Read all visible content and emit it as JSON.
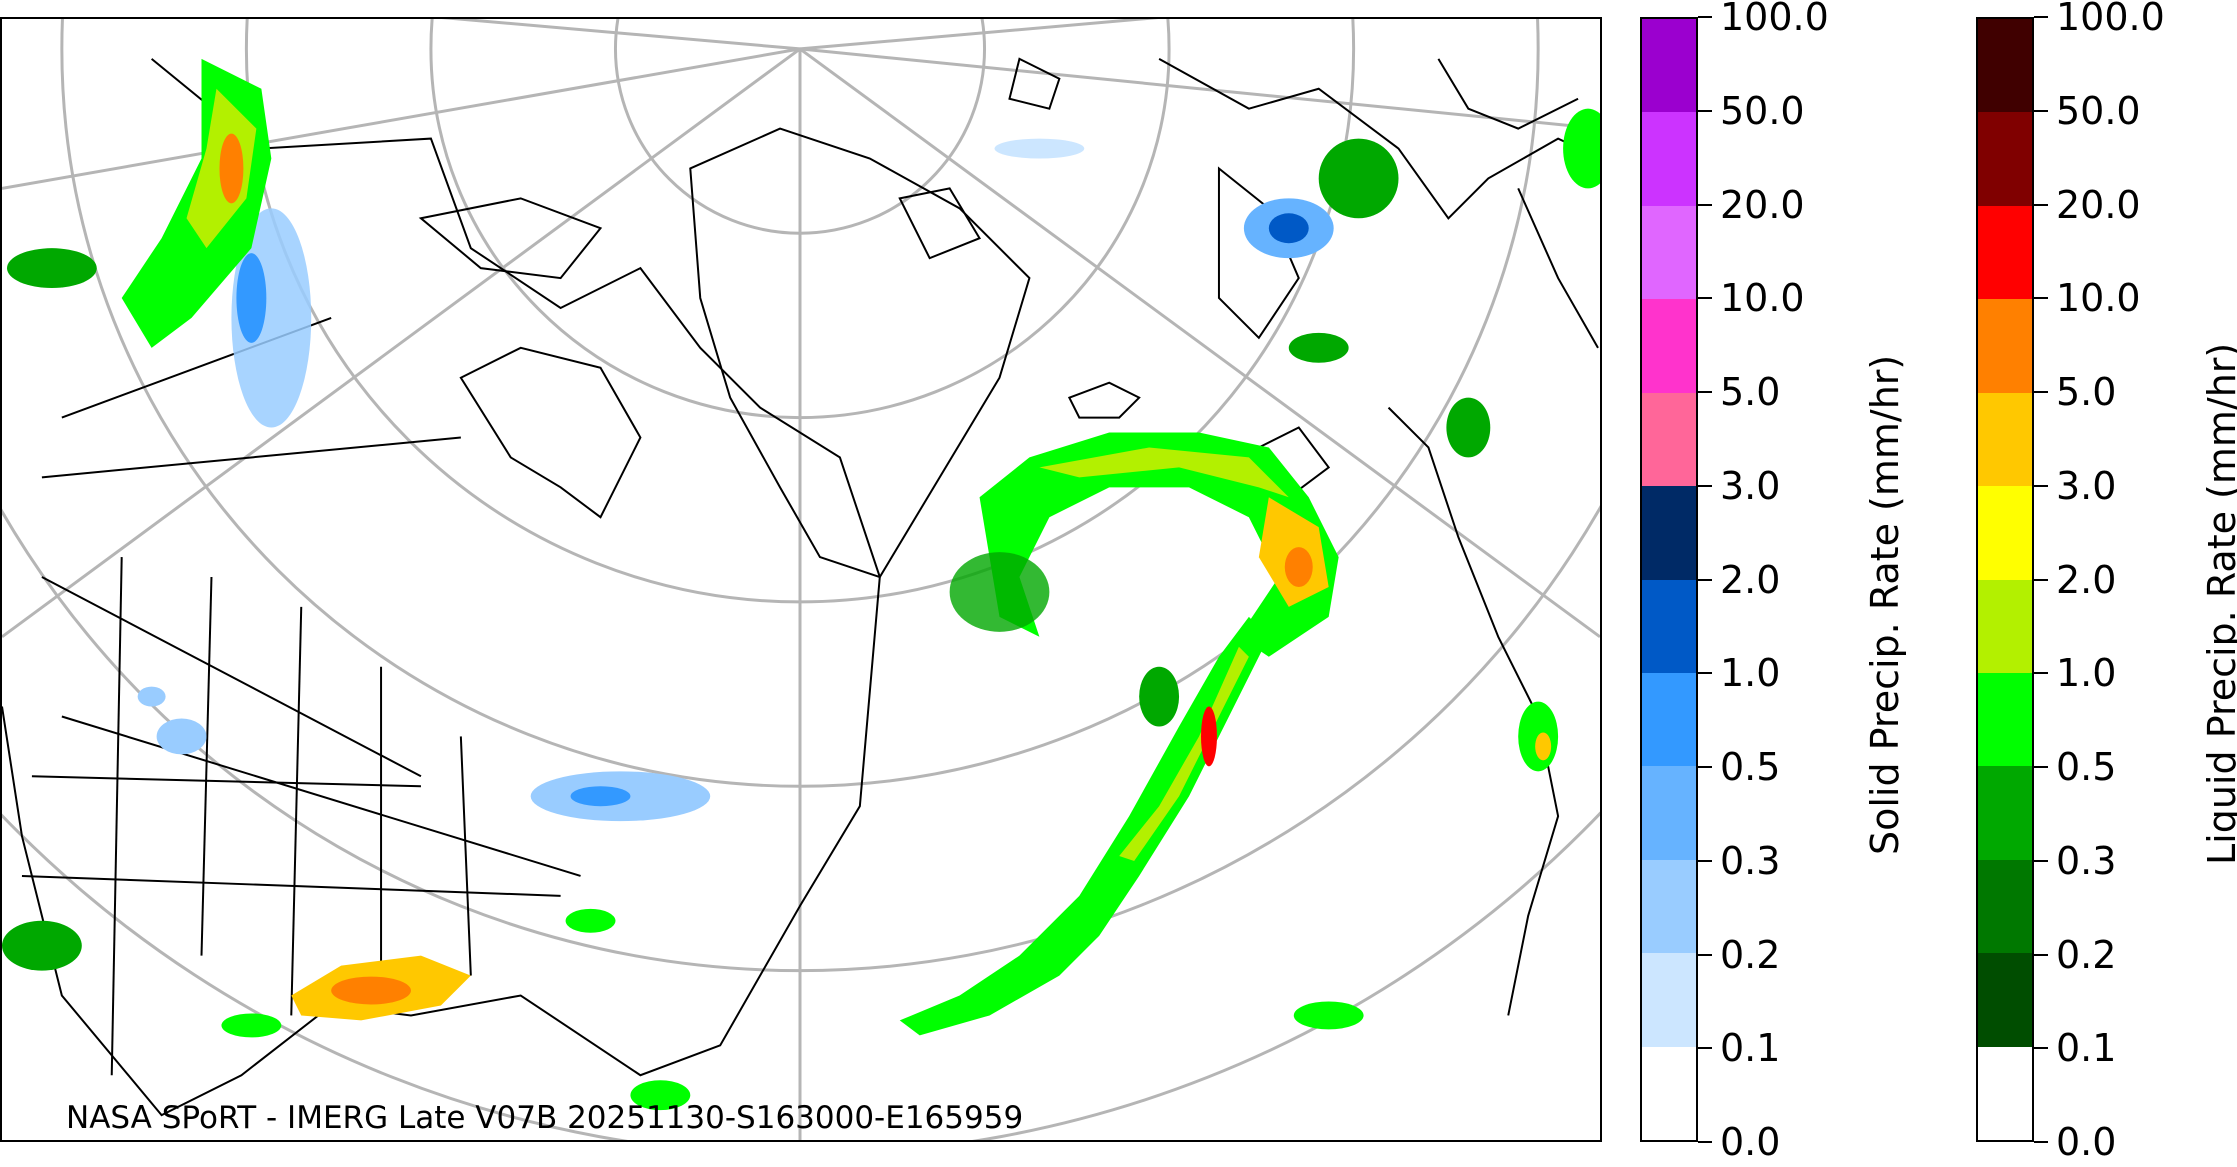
{
  "map": {
    "credit": "NASA SPoRT - IMERG Late V07B 20251130-S163000-E165959",
    "graticule_color": "#b5b5b5",
    "coastline_color": "#000000"
  },
  "solid_colorbar": {
    "title": "Solid Precip. Rate (mm/hr)",
    "ticks": [
      "100.0",
      "50.0",
      "20.0",
      "10.0",
      "5.0",
      "3.0",
      "2.0",
      "1.0",
      "0.5",
      "0.3",
      "0.2",
      "0.1",
      "0.0"
    ],
    "colors": [
      "#9b00cf",
      "#cc33ff",
      "#e066ff",
      "#ff33cc",
      "#ff6699",
      "#002a66",
      "#0059c6",
      "#3399ff",
      "#66b3ff",
      "#99ccff",
      "#cce6ff",
      "#ffffff"
    ]
  },
  "liquid_colorbar": {
    "title": "Liquid Precip. Rate (mm/hr)",
    "ticks": [
      "100.0",
      "50.0",
      "20.0",
      "10.0",
      "5.0",
      "3.0",
      "2.0",
      "1.0",
      "0.5",
      "0.3",
      "0.2",
      "0.1",
      "0.0"
    ],
    "colors": [
      "#400000",
      "#800000",
      "#ff0000",
      "#ff8000",
      "#ffc800",
      "#ffff00",
      "#b3f000",
      "#00ff00",
      "#00a800",
      "#007800",
      "#004d00",
      "#ffffff"
    ]
  }
}
